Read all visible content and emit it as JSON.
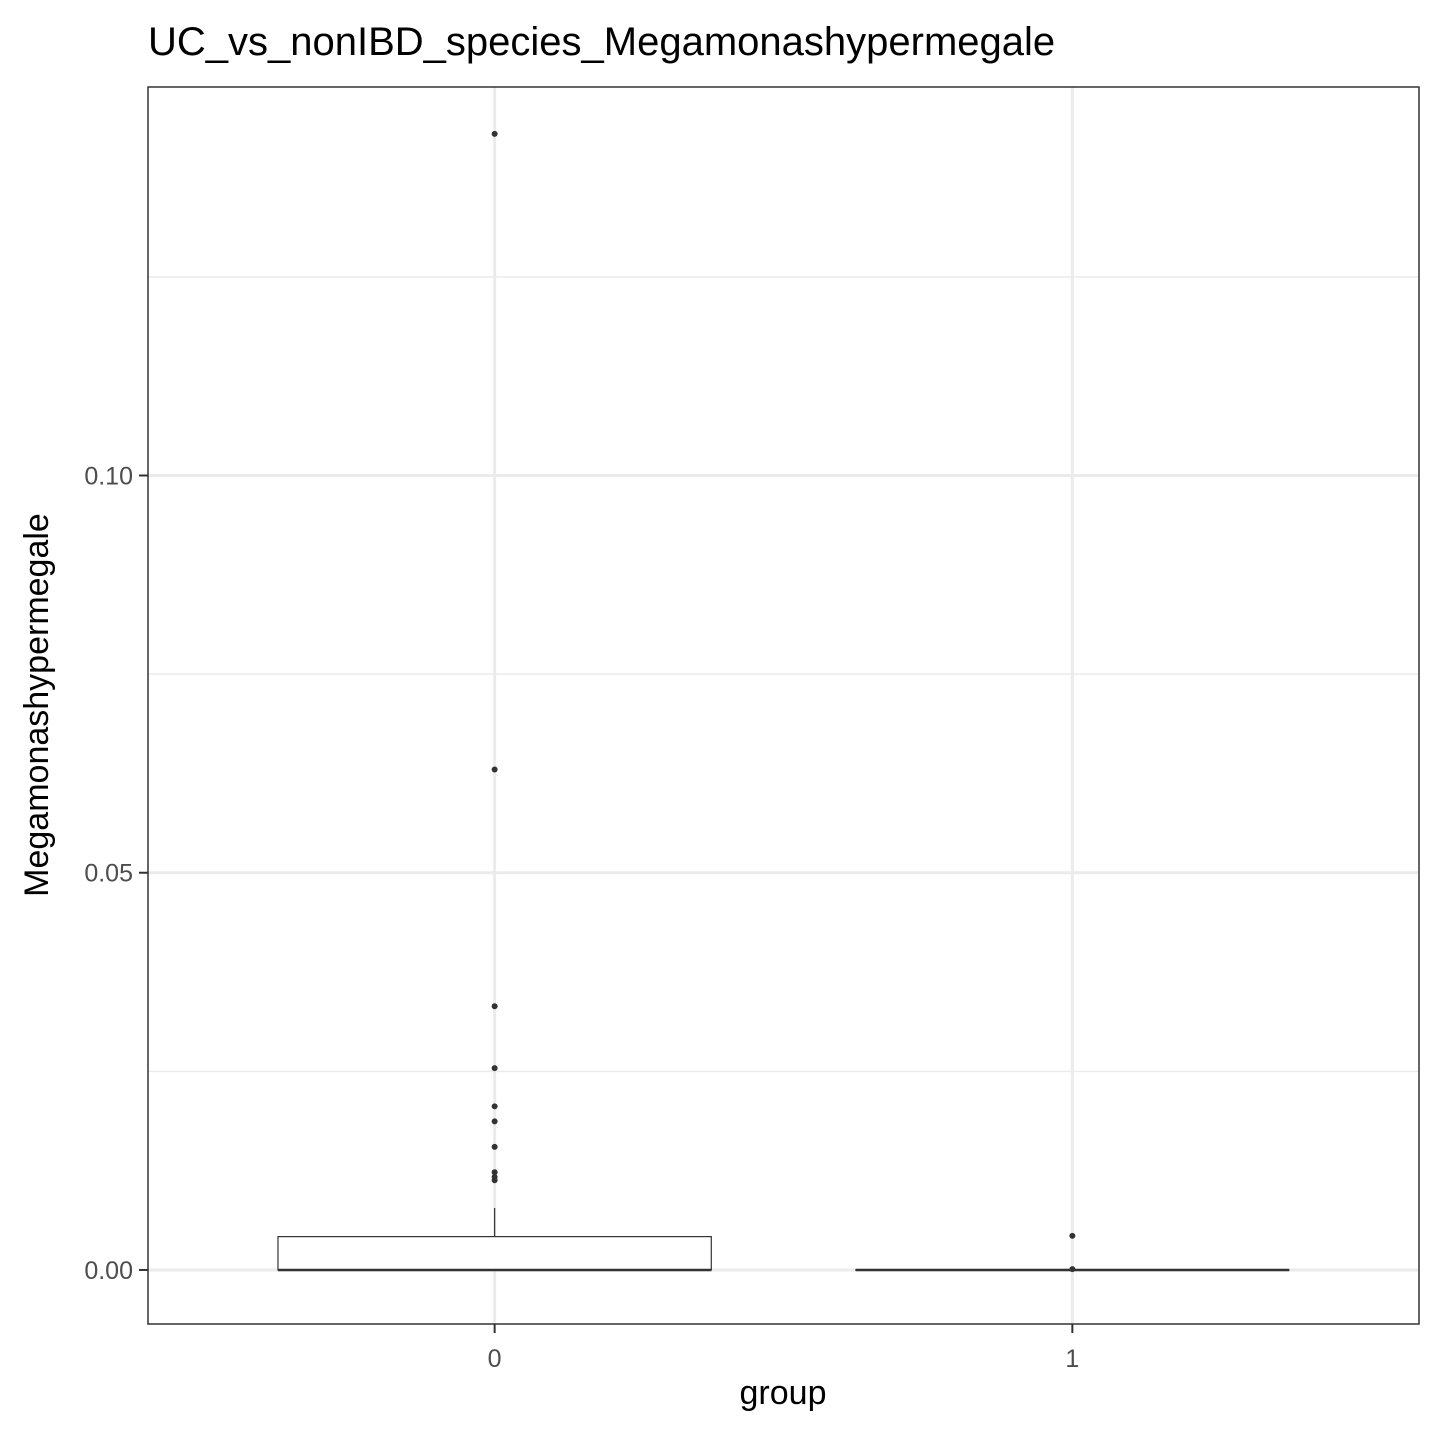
{
  "chart_data": {
    "type": "boxplot",
    "title": "UC_vs_nonIBD_species_Megamonashypermegale",
    "xlabel": "group",
    "ylabel": "Megamonashypermegale",
    "categories": [
      "0",
      "1"
    ],
    "ylim": [
      -0.0068,
      0.1489
    ],
    "yticks": [
      0.0,
      0.05,
      0.1
    ],
    "ytick_labels": [
      "0.00",
      "0.05",
      "0.10"
    ],
    "grid": true,
    "legend": "none",
    "boxes": [
      {
        "group": "0",
        "q1": 0.0,
        "median": 0.0,
        "q3": 0.0042,
        "whisker_low": 0.0,
        "whisker_high": 0.0078,
        "outliers": [
          0.143,
          0.063,
          0.0332,
          0.0254,
          0.0206,
          0.0187,
          0.0155,
          0.0123,
          0.0117,
          0.0113
        ]
      },
      {
        "group": "1",
        "q1": 0.0,
        "median": 0.0,
        "q3": 0.0,
        "whisker_low": 0.0,
        "whisker_high": 0.0,
        "outliers": [
          0.0043,
          0.0001
        ]
      }
    ],
    "colors": {
      "panel_border": "#333333",
      "grid": "#ebebeb",
      "box_fill": "#ffffff",
      "box_stroke": "#333333",
      "point": "#333333"
    }
  }
}
